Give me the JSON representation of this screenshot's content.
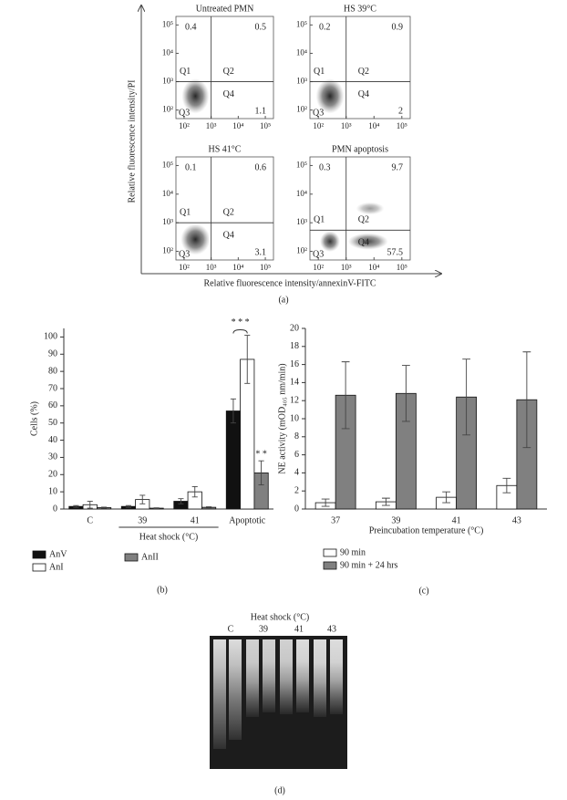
{
  "panels": {
    "a": {
      "label": "(a)",
      "xlabel": "Relative fluorescence intensity/annexinV-FITC",
      "ylabel": "Relative fluorescence intensity/PI"
    },
    "b": {
      "label": "(b)"
    },
    "c": {
      "label": "(c)"
    },
    "d": {
      "label": "(d)"
    }
  },
  "chart_data": [
    {
      "type": "quadrant",
      "title": "Untreated PMN",
      "xscale": "log",
      "yscale": "log",
      "xlim": [
        50,
        200000
      ],
      "ylim": [
        50,
        200000
      ],
      "xticks": [
        {
          "value": 100,
          "label": "10²"
        },
        {
          "value": 1000,
          "label": "10³"
        },
        {
          "value": 10000,
          "label": "10⁴"
        },
        {
          "value": 100000,
          "label": "10⁵"
        }
      ],
      "yticks": [
        {
          "value": 100,
          "label": "10²"
        },
        {
          "value": 1000,
          "label": "10³"
        },
        {
          "value": 10000,
          "label": "10⁴"
        },
        {
          "value": 100000,
          "label": "10⁵"
        }
      ],
      "gate": {
        "x": 1000,
        "y": 1000
      },
      "quadrants": [
        {
          "label": "Q1",
          "value": 0.4
        },
        {
          "label": "Q2",
          "value": 0.5
        },
        {
          "label": "Q3"
        },
        {
          "label": "Q4",
          "value": 1.1
        }
      ]
    },
    {
      "type": "quadrant",
      "title": "HS 39°C",
      "xscale": "log",
      "yscale": "log",
      "xlim": [
        50,
        200000
      ],
      "ylim": [
        50,
        200000
      ],
      "xticks": [
        {
          "value": 100,
          "label": "10²"
        },
        {
          "value": 1000,
          "label": "10³"
        },
        {
          "value": 10000,
          "label": "10⁴"
        },
        {
          "value": 100000,
          "label": "10⁵"
        }
      ],
      "yticks": [
        {
          "value": 100,
          "label": "10²"
        },
        {
          "value": 1000,
          "label": "10³"
        },
        {
          "value": 10000,
          "label": "10⁴"
        },
        {
          "value": 100000,
          "label": "10⁵"
        }
      ],
      "gate": {
        "x": 1000,
        "y": 1000
      },
      "quadrants": [
        {
          "label": "Q1",
          "value": 0.2
        },
        {
          "label": "Q2",
          "value": 0.9
        },
        {
          "label": "Q3"
        },
        {
          "label": "Q4",
          "value": 2
        }
      ]
    },
    {
      "type": "quadrant",
      "title": "HS 41°C",
      "xscale": "log",
      "yscale": "log",
      "xlim": [
        50,
        200000
      ],
      "ylim": [
        50,
        200000
      ],
      "xticks": [
        {
          "value": 100,
          "label": "10²"
        },
        {
          "value": 1000,
          "label": "10³"
        },
        {
          "value": 10000,
          "label": "10⁴"
        },
        {
          "value": 100000,
          "label": "10⁵"
        }
      ],
      "yticks": [
        {
          "value": 100,
          "label": "10²"
        },
        {
          "value": 1000,
          "label": "10³"
        },
        {
          "value": 10000,
          "label": "10⁴"
        },
        {
          "value": 100000,
          "label": "10⁵"
        }
      ],
      "gate": {
        "x": 1000,
        "y": 1000
      },
      "quadrants": [
        {
          "label": "Q1",
          "value": 0.1
        },
        {
          "label": "Q2",
          "value": 0.6
        },
        {
          "label": "Q3"
        },
        {
          "label": "Q4",
          "value": 3.1
        }
      ]
    },
    {
      "type": "quadrant",
      "title": "PMN apoptosis",
      "xscale": "log",
      "yscale": "log",
      "xlim": [
        50,
        200000
      ],
      "ylim": [
        50,
        200000
      ],
      "xticks": [
        {
          "value": 100,
          "label": "10²"
        },
        {
          "value": 1000,
          "label": "10³"
        },
        {
          "value": 10000,
          "label": "10⁴"
        },
        {
          "value": 100000,
          "label": "10⁵"
        }
      ],
      "yticks": [
        {
          "value": 100,
          "label": "10²"
        },
        {
          "value": 1000,
          "label": "10³"
        },
        {
          "value": 10000,
          "label": "10⁴"
        },
        {
          "value": 100000,
          "label": "10⁵"
        }
      ],
      "gate": {
        "x": 1000,
        "y": 550
      },
      "quadrants": [
        {
          "label": "Q1",
          "value": 0.3
        },
        {
          "label": "Q2",
          "value": 9.7
        },
        {
          "label": "Q3"
        },
        {
          "label": "Q4",
          "value": 57.5
        }
      ]
    },
    {
      "type": "bar",
      "ylabel": "Cells (%)",
      "categories": [
        "C",
        "39",
        "41",
        "Apoptotic"
      ],
      "ylim": [
        0,
        105
      ],
      "yticks": [
        0,
        10,
        20,
        30,
        40,
        50,
        60,
        70,
        80,
        90,
        100
      ],
      "series": [
        {
          "name": "AnV",
          "color": "#111111",
          "values": [
            1.5,
            1.5,
            4.5,
            57
          ],
          "errors": [
            0.5,
            0.5,
            1.5,
            7
          ]
        },
        {
          "name": "AnI",
          "color": "#ffffff",
          "values": [
            2.5,
            5.5,
            10,
            87
          ],
          "errors": [
            2,
            2.5,
            3,
            14
          ]
        },
        {
          "name": "AnII",
          "color": "#808080",
          "values": [
            0.8,
            0.5,
            1,
            21
          ],
          "errors": [
            0.3,
            0.2,
            0.3,
            7
          ]
        }
      ],
      "groups": [
        {
          "label": "Heat shock (°C)",
          "from": "39",
          "to": "41"
        }
      ],
      "annotations": [
        {
          "text": "* * *",
          "category": "Apoptotic",
          "series": [
            "AnV",
            "AnI"
          ]
        },
        {
          "text": "* *",
          "category": "Apoptotic",
          "series": [
            "AnII"
          ]
        }
      ],
      "legend": "below"
    },
    {
      "type": "bar",
      "xlabel": "Preincubation temperature (°C)",
      "ylabel": "NE activity (mOD₄₀₅ nm/min)",
      "categories": [
        "37",
        "39",
        "41",
        "43"
      ],
      "ylim": [
        0,
        20
      ],
      "yticks": [
        0,
        2,
        4,
        6,
        8,
        10,
        12,
        14,
        16,
        18,
        20
      ],
      "series": [
        {
          "name": "90 min",
          "color": "#ffffff",
          "values": [
            0.7,
            0.8,
            1.3,
            2.6
          ],
          "errors": [
            0.4,
            0.4,
            0.6,
            0.8
          ]
        },
        {
          "name": "90 min + 24 hrs",
          "color": "#808080",
          "values": [
            12.6,
            12.8,
            12.4,
            12.1
          ],
          "errors": [
            3.7,
            3.1,
            4.2,
            5.3
          ]
        }
      ],
      "legend": "below"
    }
  ],
  "gel": {
    "title": "Heat shock (°C)",
    "lanes": [
      "C",
      "39",
      "41",
      "43"
    ]
  }
}
